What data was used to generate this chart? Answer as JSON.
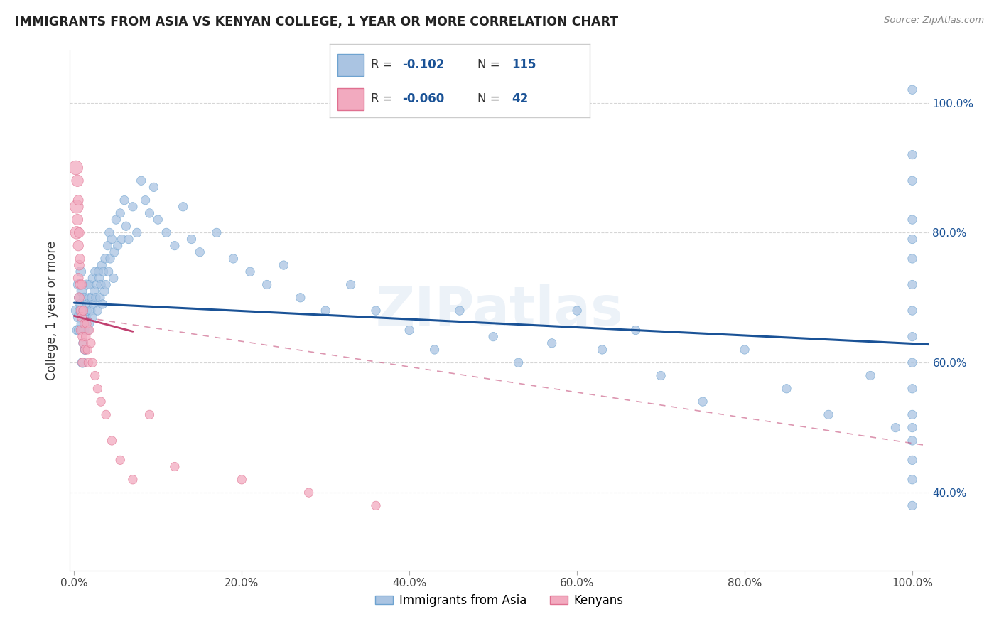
{
  "title": "IMMIGRANTS FROM ASIA VS KENYAN COLLEGE, 1 YEAR OR MORE CORRELATION CHART",
  "source": "Source: ZipAtlas.com",
  "ylabel": "College, 1 year or more",
  "xlim": [
    -0.005,
    1.02
  ],
  "ylim": [
    0.28,
    1.08
  ],
  "xtick_vals": [
    0.0,
    0.2,
    0.4,
    0.6,
    0.8,
    1.0
  ],
  "xtick_labels": [
    "0.0%",
    "20.0%",
    "40.0%",
    "60.0%",
    "80.0%",
    "100.0%"
  ],
  "ytick_vals": [
    0.4,
    0.6,
    0.8,
    1.0
  ],
  "right_ytick_labels": [
    "40.0%",
    "60.0%",
    "80.0%",
    "100.0%"
  ],
  "legend_r_blue": "-0.102",
  "legend_n_blue": "115",
  "legend_r_pink": "-0.060",
  "legend_n_pink": "42",
  "blue_fill": "#aac4e2",
  "blue_edge": "#6ea3d0",
  "pink_fill": "#f2aabf",
  "pink_edge": "#e07090",
  "blue_line_color": "#1a5296",
  "pink_line_color": "#c04070",
  "watermark": "ZIPatlas",
  "blue_trend": [
    0.0,
    1.02,
    0.692,
    0.628
  ],
  "pink_trend_solid": [
    0.0,
    0.07,
    0.672,
    0.648
  ],
  "pink_trend_dash": [
    0.0,
    1.02,
    0.672,
    0.472
  ],
  "blue_x": [
    0.003,
    0.004,
    0.005,
    0.005,
    0.006,
    0.006,
    0.007,
    0.008,
    0.008,
    0.009,
    0.009,
    0.01,
    0.01,
    0.011,
    0.011,
    0.012,
    0.012,
    0.013,
    0.013,
    0.014,
    0.015,
    0.015,
    0.016,
    0.017,
    0.018,
    0.018,
    0.019,
    0.02,
    0.021,
    0.022,
    0.022,
    0.023,
    0.024,
    0.025,
    0.026,
    0.027,
    0.028,
    0.029,
    0.03,
    0.031,
    0.032,
    0.033,
    0.034,
    0.035,
    0.036,
    0.037,
    0.038,
    0.04,
    0.041,
    0.042,
    0.043,
    0.045,
    0.047,
    0.048,
    0.05,
    0.052,
    0.055,
    0.057,
    0.06,
    0.062,
    0.065,
    0.07,
    0.075,
    0.08,
    0.085,
    0.09,
    0.095,
    0.1,
    0.11,
    0.12,
    0.13,
    0.14,
    0.15,
    0.17,
    0.19,
    0.21,
    0.23,
    0.25,
    0.27,
    0.3,
    0.33,
    0.36,
    0.4,
    0.43,
    0.46,
    0.5,
    0.53,
    0.57,
    0.6,
    0.63,
    0.67,
    0.7,
    0.75,
    0.8,
    0.85,
    0.9,
    0.95,
    0.98,
    1.0,
    1.0,
    1.0,
    1.0,
    1.0,
    1.0,
    1.0,
    1.0,
    1.0,
    1.0,
    1.0,
    1.0,
    1.0,
    1.0,
    1.0,
    1.0,
    1.0
  ],
  "blue_y": [
    0.68,
    0.65,
    0.72,
    0.67,
    0.7,
    0.65,
    0.68,
    0.74,
    0.69,
    0.71,
    0.66,
    0.65,
    0.6,
    0.68,
    0.63,
    0.7,
    0.65,
    0.66,
    0.62,
    0.67,
    0.72,
    0.68,
    0.69,
    0.65,
    0.7,
    0.66,
    0.72,
    0.68,
    0.7,
    0.67,
    0.73,
    0.69,
    0.71,
    0.74,
    0.7,
    0.72,
    0.68,
    0.74,
    0.73,
    0.7,
    0.72,
    0.75,
    0.69,
    0.74,
    0.71,
    0.76,
    0.72,
    0.78,
    0.74,
    0.8,
    0.76,
    0.79,
    0.73,
    0.77,
    0.82,
    0.78,
    0.83,
    0.79,
    0.85,
    0.81,
    0.79,
    0.84,
    0.8,
    0.88,
    0.85,
    0.83,
    0.87,
    0.82,
    0.8,
    0.78,
    0.84,
    0.79,
    0.77,
    0.8,
    0.76,
    0.74,
    0.72,
    0.75,
    0.7,
    0.68,
    0.72,
    0.68,
    0.65,
    0.62,
    0.68,
    0.64,
    0.6,
    0.63,
    0.68,
    0.62,
    0.65,
    0.58,
    0.54,
    0.62,
    0.56,
    0.52,
    0.58,
    0.5,
    1.02,
    0.92,
    0.88,
    0.82,
    0.79,
    0.76,
    0.72,
    0.68,
    0.64,
    0.6,
    0.56,
    0.52,
    0.5,
    0.48,
    0.45,
    0.42,
    0.38
  ],
  "blue_sizes": [
    120,
    100,
    100,
    100,
    100,
    100,
    100,
    100,
    100,
    100,
    100,
    100,
    100,
    90,
    90,
    90,
    90,
    90,
    90,
    90,
    90,
    90,
    90,
    80,
    80,
    80,
    80,
    80,
    80,
    80,
    80,
    80,
    80,
    80,
    80,
    80,
    80,
    80,
    80,
    80,
    80,
    80,
    80,
    80,
    80,
    80,
    80,
    80,
    80,
    80,
    80,
    80,
    80,
    80,
    80,
    80,
    80,
    80,
    80,
    80,
    80,
    80,
    80,
    80,
    80,
    80,
    80,
    80,
    80,
    80,
    80,
    80,
    80,
    80,
    80,
    80,
    80,
    80,
    80,
    80,
    80,
    80,
    80,
    80,
    80,
    80,
    80,
    80,
    80,
    80,
    80,
    80,
    80,
    80,
    80,
    80,
    80,
    80,
    80,
    80,
    80,
    80,
    80,
    80,
    80,
    80,
    80,
    80,
    80,
    80,
    80,
    80,
    80,
    80,
    80
  ],
  "pink_x": [
    0.002,
    0.003,
    0.003,
    0.004,
    0.004,
    0.005,
    0.005,
    0.005,
    0.006,
    0.006,
    0.006,
    0.007,
    0.007,
    0.008,
    0.008,
    0.009,
    0.009,
    0.01,
    0.01,
    0.011,
    0.011,
    0.012,
    0.013,
    0.014,
    0.015,
    0.016,
    0.017,
    0.018,
    0.02,
    0.022,
    0.025,
    0.028,
    0.032,
    0.038,
    0.045,
    0.055,
    0.07,
    0.09,
    0.12,
    0.2,
    0.28,
    0.36
  ],
  "pink_y": [
    0.9,
    0.84,
    0.8,
    0.88,
    0.82,
    0.78,
    0.73,
    0.85,
    0.8,
    0.75,
    0.7,
    0.76,
    0.72,
    0.68,
    0.65,
    0.72,
    0.67,
    0.64,
    0.6,
    0.68,
    0.63,
    0.66,
    0.62,
    0.64,
    0.66,
    0.62,
    0.6,
    0.65,
    0.63,
    0.6,
    0.58,
    0.56,
    0.54,
    0.52,
    0.48,
    0.45,
    0.42,
    0.52,
    0.44,
    0.42,
    0.4,
    0.38
  ],
  "pink_sizes": [
    200,
    180,
    160,
    140,
    120,
    110,
    100,
    100,
    100,
    100,
    100,
    90,
    90,
    90,
    90,
    90,
    90,
    85,
    85,
    85,
    85,
    80,
    80,
    80,
    80,
    80,
    80,
    80,
    80,
    80,
    80,
    80,
    80,
    80,
    80,
    80,
    80,
    80,
    80,
    80,
    80,
    80
  ]
}
